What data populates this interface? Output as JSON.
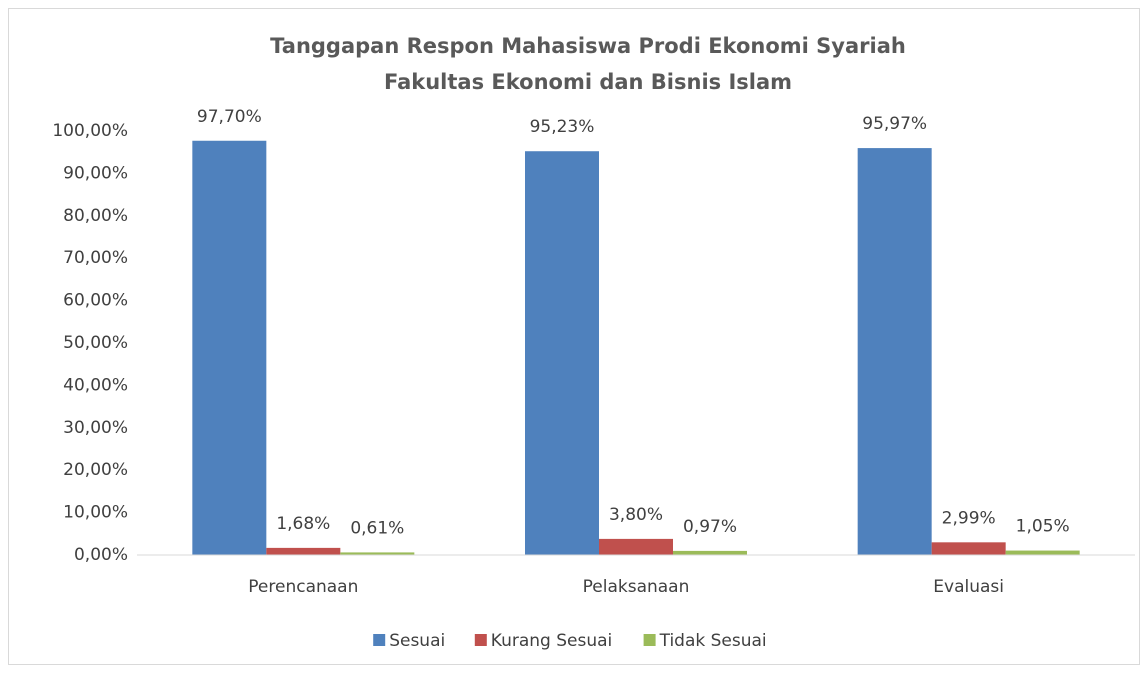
{
  "chart_data": {
    "type": "bar",
    "title": [
      "Tanggapan Respon Mahasiswa Prodi Ekonomi Syariah",
      "Fakultas Ekonomi dan Bisnis Islam"
    ],
    "categories": [
      "Perencanaan",
      "Pelaksanaan",
      "Evaluasi"
    ],
    "series": [
      {
        "name": "Sesuai",
        "color": "#4f81bd",
        "values": [
          97.7,
          95.23,
          95.97
        ],
        "value_labels": [
          "97,70%",
          "95,23%",
          "95,97%"
        ]
      },
      {
        "name": "Kurang Sesuai",
        "color": "#c0504d",
        "values": [
          1.68,
          3.8,
          2.99
        ],
        "value_labels": [
          "1,68%",
          "3,80%",
          "2,99%"
        ]
      },
      {
        "name": "Tidak Sesuai",
        "color": "#9bbb59",
        "values": [
          0.61,
          0.97,
          1.05
        ],
        "value_labels": [
          "0,61%",
          "0,97%",
          "1,05%"
        ]
      }
    ],
    "ylim": [
      0,
      100
    ],
    "yticks": [
      {
        "value": 0,
        "label": "0,00%"
      },
      {
        "value": 10,
        "label": "10,00%"
      },
      {
        "value": 20,
        "label": "20,00%"
      },
      {
        "value": 30,
        "label": "30,00%"
      },
      {
        "value": 40,
        "label": "40,00%"
      },
      {
        "value": 50,
        "label": "50,00%"
      },
      {
        "value": 60,
        "label": "60,00%"
      },
      {
        "value": 70,
        "label": "70,00%"
      },
      {
        "value": 80,
        "label": "80,00%"
      },
      {
        "value": 90,
        "label": "90,00%"
      },
      {
        "value": 100,
        "label": "100,00%"
      }
    ],
    "grid": false,
    "legend": "bottom"
  }
}
